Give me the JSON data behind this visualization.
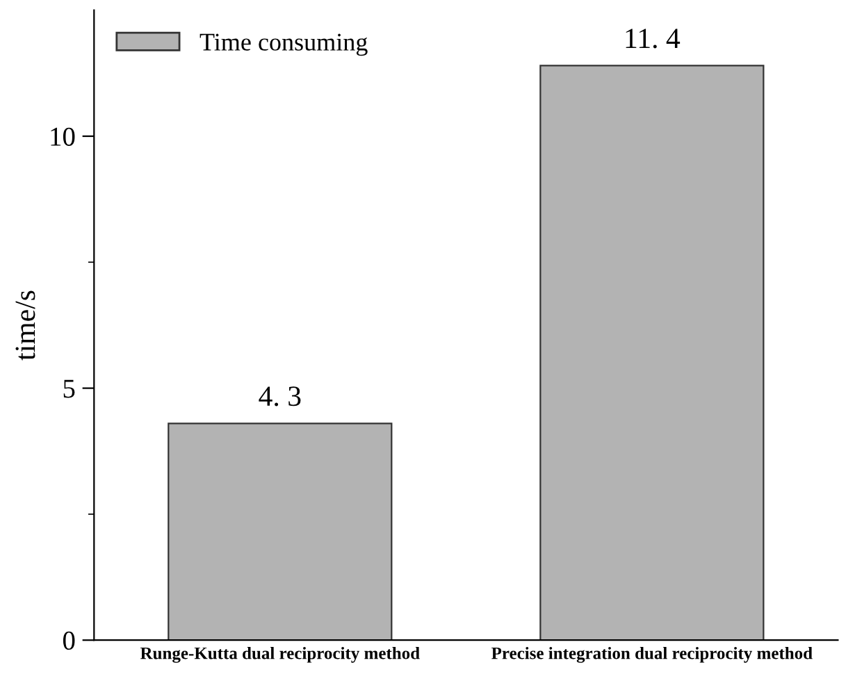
{
  "chart_data": {
    "type": "bar",
    "ylabel": "time/s",
    "categories": [
      "Runge-Kutta dual reciprocity method",
      "Precise integration dual reciprocity method"
    ],
    "series": [
      {
        "name": "Time consuming",
        "color": "#b3b3b3",
        "values": [
          4.3,
          11.4
        ],
        "value_labels": [
          "4. 3",
          "11. 4"
        ]
      }
    ],
    "ylim": [
      0,
      12.5
    ],
    "yticks": [
      0,
      5,
      10
    ],
    "legend": "top left",
    "grid": false
  }
}
